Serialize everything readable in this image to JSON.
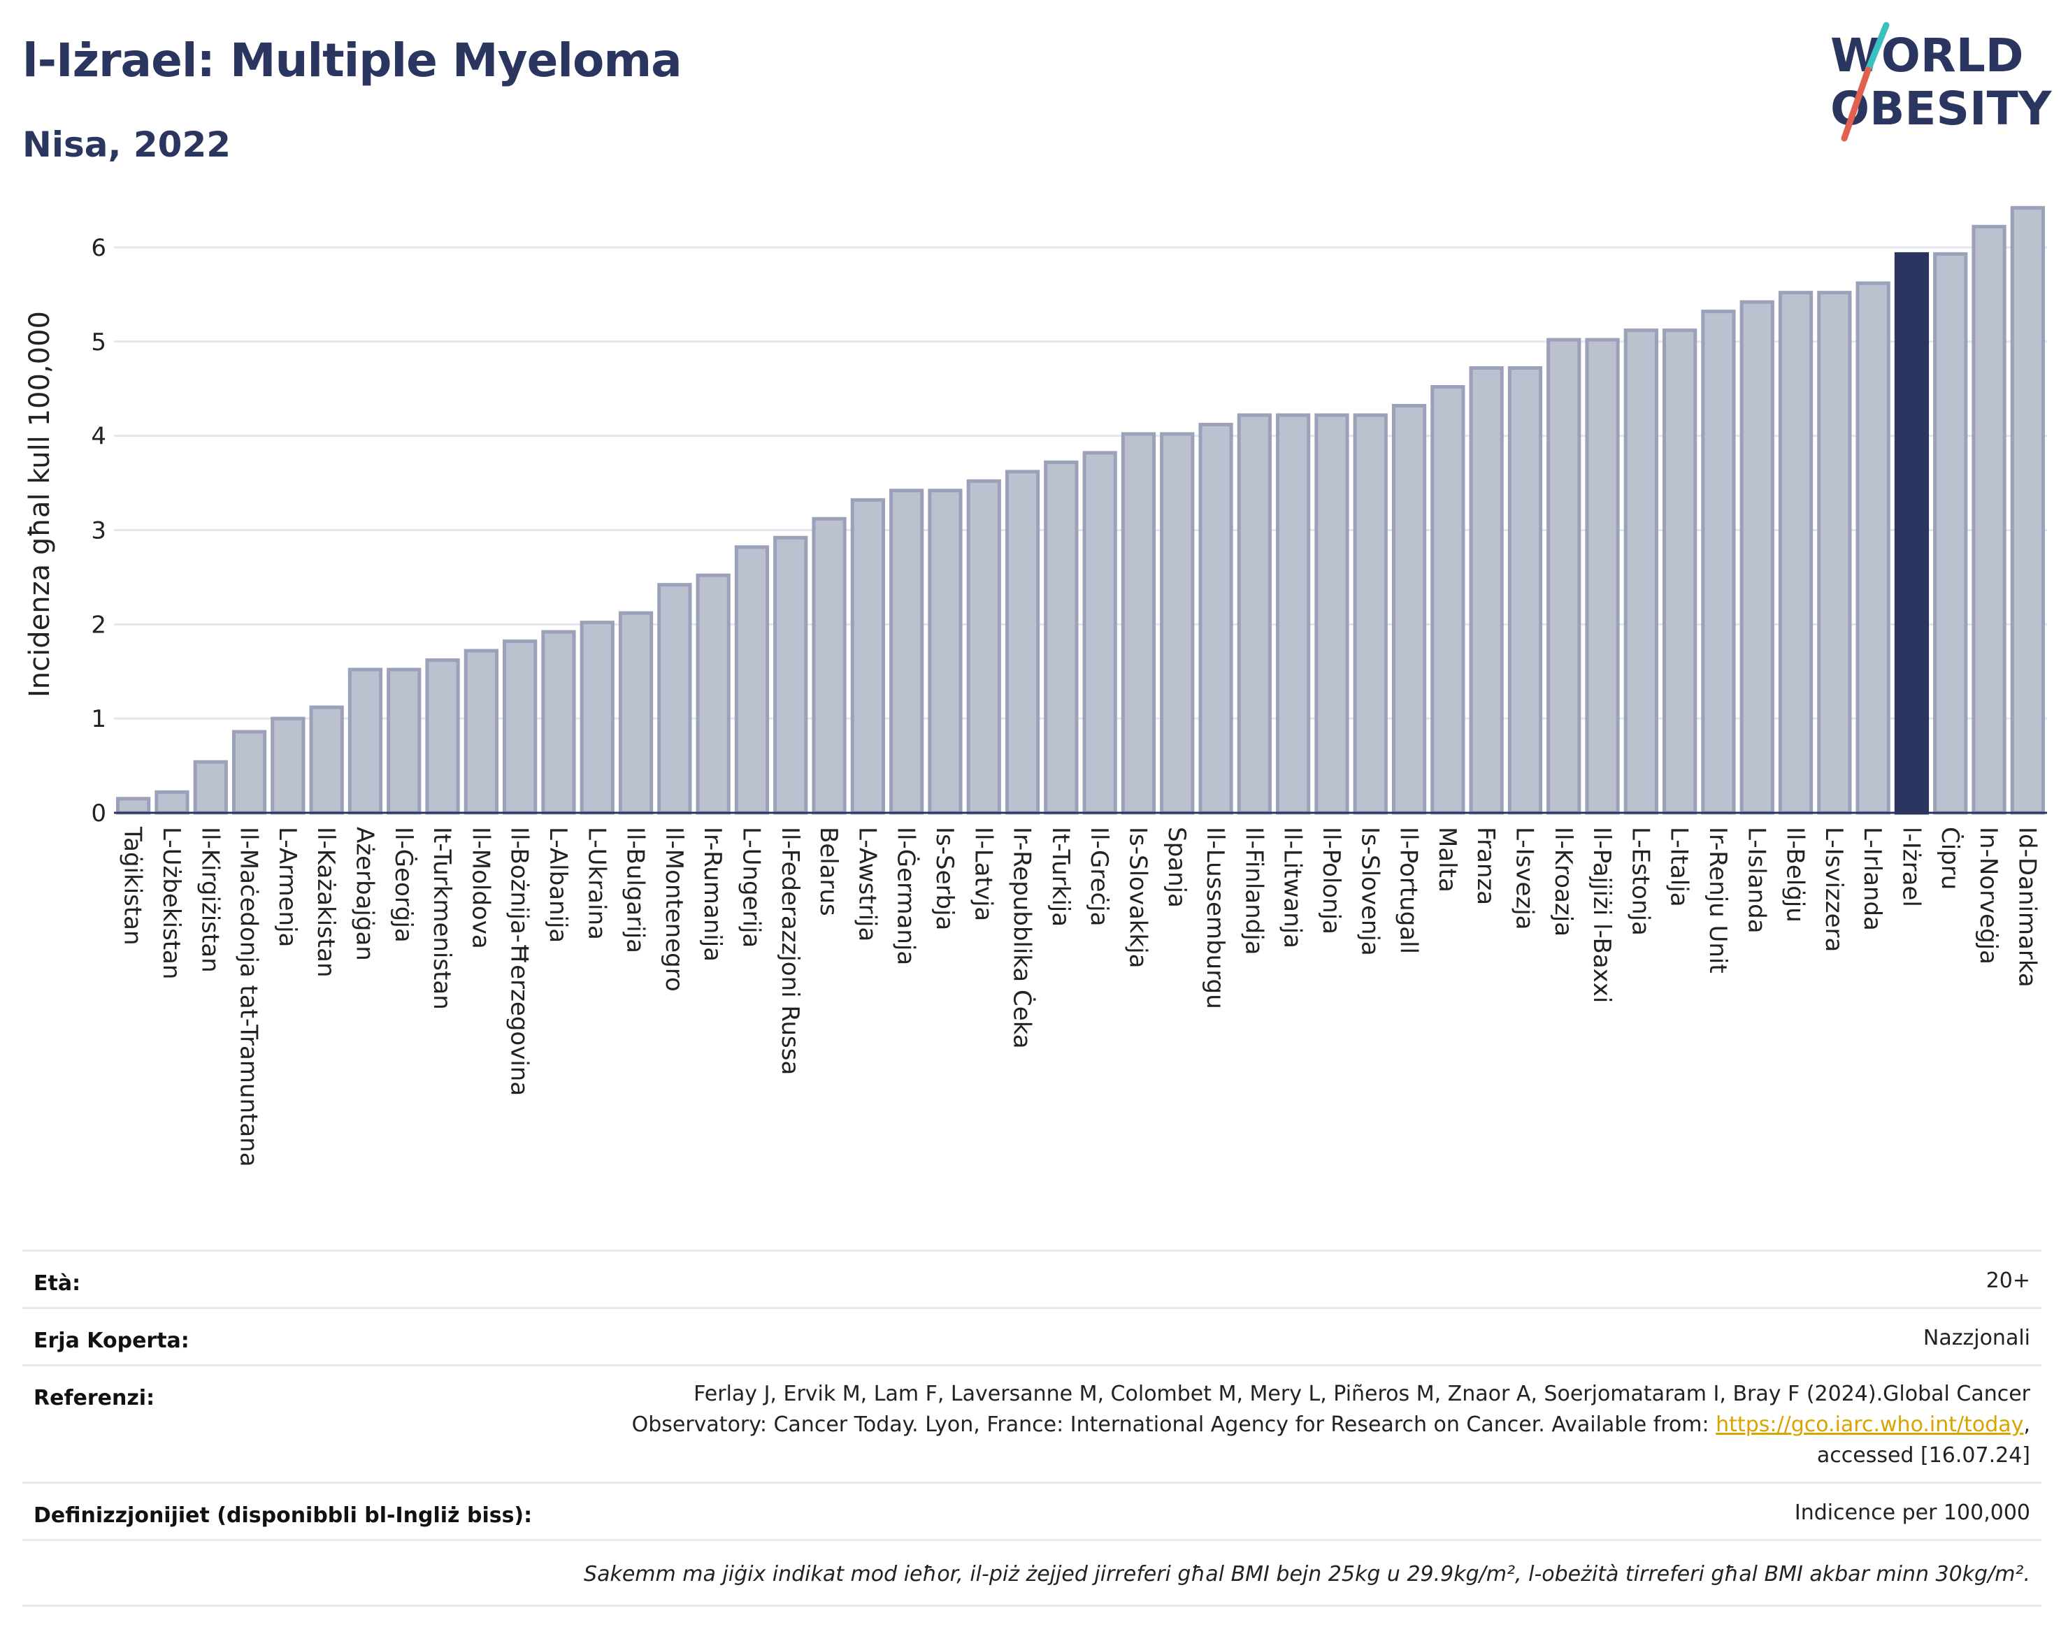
{
  "header": {
    "title": "l-Iżrael: Multiple Myeloma",
    "subtitle": "Nisa, 2022"
  },
  "logo": {
    "line1": "WORLD",
    "line2": "OBESITY",
    "colors": {
      "text": "#2b3660",
      "slash_teal": "#3bbfbf",
      "slash_red": "#e0614f"
    }
  },
  "colors": {
    "bar_fill": "#bcc1d0",
    "bar_stroke": "#9aa1b8",
    "highlight_fill": "#2b3660",
    "grid": "#e3e6ee",
    "axis": "#2b3660"
  },
  "chart_data": {
    "type": "bar",
    "title": "",
    "ylabel": "Incidenza għal kull 100,000",
    "xlabel": "",
    "ylim": [
      0,
      6.4
    ],
    "yticks": [
      0,
      1,
      2,
      3,
      4,
      5,
      6
    ],
    "grid": true,
    "highlight": "l-Iżrael",
    "categories": [
      "Taġikistan",
      "L-Użbekistan",
      "Il-Kirgiżistan",
      "Il-Maċedonja tat-Tramuntana",
      "L-Armenja",
      "Il-Każakistan",
      "Ażerbajġan",
      "Il-Ġeorġja",
      "It-Turkmenistan",
      "Il-Moldova",
      "Il-Bożnija-Ħerzegovina",
      "L-Albanija",
      "L-Ukraina",
      "Il-Bulgarija",
      "Il-Montenegro",
      "Ir-Rumanija",
      "L-Ungerija",
      "Il-Federazzjoni Russa",
      "Belarus",
      "L-Awstrija",
      "Il-Ġermanja",
      "Is-Serbja",
      "Il-Latvja",
      "Ir-Repubblika Ċeka",
      "It-Turkija",
      "Il-Greċja",
      "Is-Slovakkja",
      "Spanja",
      "Il-Lussemburgu",
      "Il-Finlandja",
      "Il-Litwanja",
      "Il-Polonja",
      "Is-Slovenja",
      "Il-Portugall",
      "Malta",
      "Franza",
      "L-Isvezja",
      "Il-Kroazja",
      "Il-Pajjiżi l-Baxxi",
      "L-Estonja",
      "L-Italja",
      "Ir-Renju Unit",
      "L-Islanda",
      "Il-Belġju",
      "L-Isvizzera",
      "L-Irlanda",
      "l-Iżrael",
      "Ċipru",
      "In-Norveġja",
      "Id-Danimarka"
    ],
    "values": [
      0.15,
      0.22,
      0.54,
      0.86,
      1.0,
      1.12,
      1.52,
      1.52,
      1.62,
      1.72,
      1.82,
      1.92,
      2.02,
      2.12,
      2.42,
      2.52,
      2.82,
      2.92,
      3.12,
      3.32,
      3.42,
      3.42,
      3.52,
      3.62,
      3.72,
      3.82,
      4.02,
      4.02,
      4.12,
      4.22,
      4.22,
      4.22,
      4.22,
      4.32,
      4.52,
      4.72,
      4.72,
      5.02,
      5.02,
      5.12,
      5.12,
      5.32,
      5.42,
      5.52,
      5.52,
      5.62,
      5.93,
      5.93,
      6.22,
      6.42
    ]
  },
  "info": {
    "age_label": "Età:",
    "age_value": "20+",
    "coverage_label": "Erja Koperta:",
    "coverage_value": "Nazzjonali",
    "refs_label": "Referenzi:",
    "refs_line1": "Ferlay J, Ervik M, Lam F, Laversanne M, Colombet M, Mery L, Piñeros M, Znaor A, Soerjomataram I, Bray F (2024).Global Cancer",
    "refs_line2_pre": "Observatory: Cancer Today. Lyon, France: International Agency for Research on Cancer. Available from: ",
    "refs_link": "https://gco.iarc.who.int/today",
    "refs_line2_post": ",",
    "refs_line3": "accessed [16.07.24]",
    "defs_label": "Definizzjonijiet (disponibbli bl-Ingliż biss):",
    "defs_value": "Indicence per 100,000",
    "note": "Sakemm ma jiġix indikat mod ieħor, il-piż żejjed jirreferi għal BMI bejn 25kg u 29.9kg/m², l-obeżità tirreferi għal BMI akbar minn 30kg/m²."
  }
}
